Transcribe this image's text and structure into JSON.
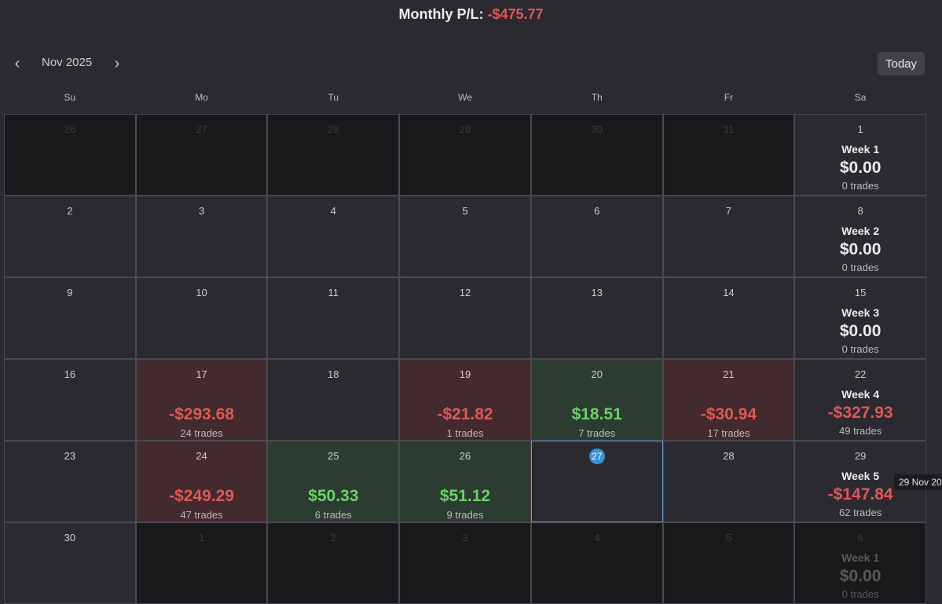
{
  "header": {
    "prefix": "Monthly P/L: ",
    "value": "-$475.77"
  },
  "nav": {
    "prev": "‹",
    "next": "›",
    "month": "Nov 2025",
    "today": "Today"
  },
  "weekdays": [
    "Su",
    "Mo",
    "Tu",
    "We",
    "Th",
    "Fr",
    "Sa"
  ],
  "weeks": [
    {
      "days": [
        {
          "day": "26",
          "type": "out"
        },
        {
          "day": "27",
          "type": "out"
        },
        {
          "day": "28",
          "type": "out"
        },
        {
          "day": "29",
          "type": "out"
        },
        {
          "day": "30",
          "type": "out"
        },
        {
          "day": "31",
          "type": "out"
        },
        {
          "day": "1",
          "type": "summary",
          "week": "Week 1",
          "pl": "$0.00",
          "trades": "0 trades",
          "sign": ""
        }
      ]
    },
    {
      "days": [
        {
          "day": "2",
          "type": "normal"
        },
        {
          "day": "3",
          "type": "normal"
        },
        {
          "day": "4",
          "type": "normal"
        },
        {
          "day": "5",
          "type": "normal"
        },
        {
          "day": "6",
          "type": "normal"
        },
        {
          "day": "7",
          "type": "normal"
        },
        {
          "day": "8",
          "type": "summary",
          "week": "Week 2",
          "pl": "$0.00",
          "trades": "0 trades",
          "sign": ""
        }
      ]
    },
    {
      "days": [
        {
          "day": "9",
          "type": "normal"
        },
        {
          "day": "10",
          "type": "normal"
        },
        {
          "day": "11",
          "type": "normal"
        },
        {
          "day": "12",
          "type": "normal"
        },
        {
          "day": "13",
          "type": "normal"
        },
        {
          "day": "14",
          "type": "normal"
        },
        {
          "day": "15",
          "type": "summary",
          "week": "Week 3",
          "pl": "$0.00",
          "trades": "0 trades",
          "sign": ""
        }
      ]
    },
    {
      "days": [
        {
          "day": "16",
          "type": "normal"
        },
        {
          "day": "17",
          "type": "loss",
          "pl": "-$293.68",
          "trades": "24 trades"
        },
        {
          "day": "18",
          "type": "normal"
        },
        {
          "day": "19",
          "type": "loss",
          "pl": "-$21.82",
          "trades": "1 trades"
        },
        {
          "day": "20",
          "type": "win",
          "pl": "$18.51",
          "trades": "7 trades"
        },
        {
          "day": "21",
          "type": "loss",
          "pl": "-$30.94",
          "trades": "17 trades"
        },
        {
          "day": "22",
          "type": "summary",
          "week": "Week 4",
          "pl": "-$327.93",
          "trades": "49 trades",
          "sign": "neg"
        }
      ]
    },
    {
      "days": [
        {
          "day": "23",
          "type": "normal"
        },
        {
          "day": "24",
          "type": "loss",
          "pl": "-$249.29",
          "trades": "47 trades"
        },
        {
          "day": "25",
          "type": "win",
          "pl": "$50.33",
          "trades": "6 trades"
        },
        {
          "day": "26",
          "type": "win",
          "pl": "$51.12",
          "trades": "9 trades"
        },
        {
          "day": "27",
          "type": "today"
        },
        {
          "day": "28",
          "type": "normal"
        },
        {
          "day": "29",
          "type": "summary",
          "week": "Week 5",
          "pl": "-$147.84",
          "trades": "62 trades",
          "sign": "neg"
        }
      ]
    },
    {
      "days": [
        {
          "day": "30",
          "type": "normal"
        },
        {
          "day": "1",
          "type": "out"
        },
        {
          "day": "2",
          "type": "out"
        },
        {
          "day": "3",
          "type": "out"
        },
        {
          "day": "4",
          "type": "out"
        },
        {
          "day": "5",
          "type": "out"
        },
        {
          "day": "6",
          "type": "summary-out",
          "week": "Week 1",
          "pl": "$0.00",
          "trades": "0 trades",
          "sign": ""
        }
      ]
    }
  ],
  "tooltip": "29 Nov 20",
  "colors": {
    "loss": "#e05858",
    "win": "#6dd06b",
    "today": "#3b91d6"
  }
}
